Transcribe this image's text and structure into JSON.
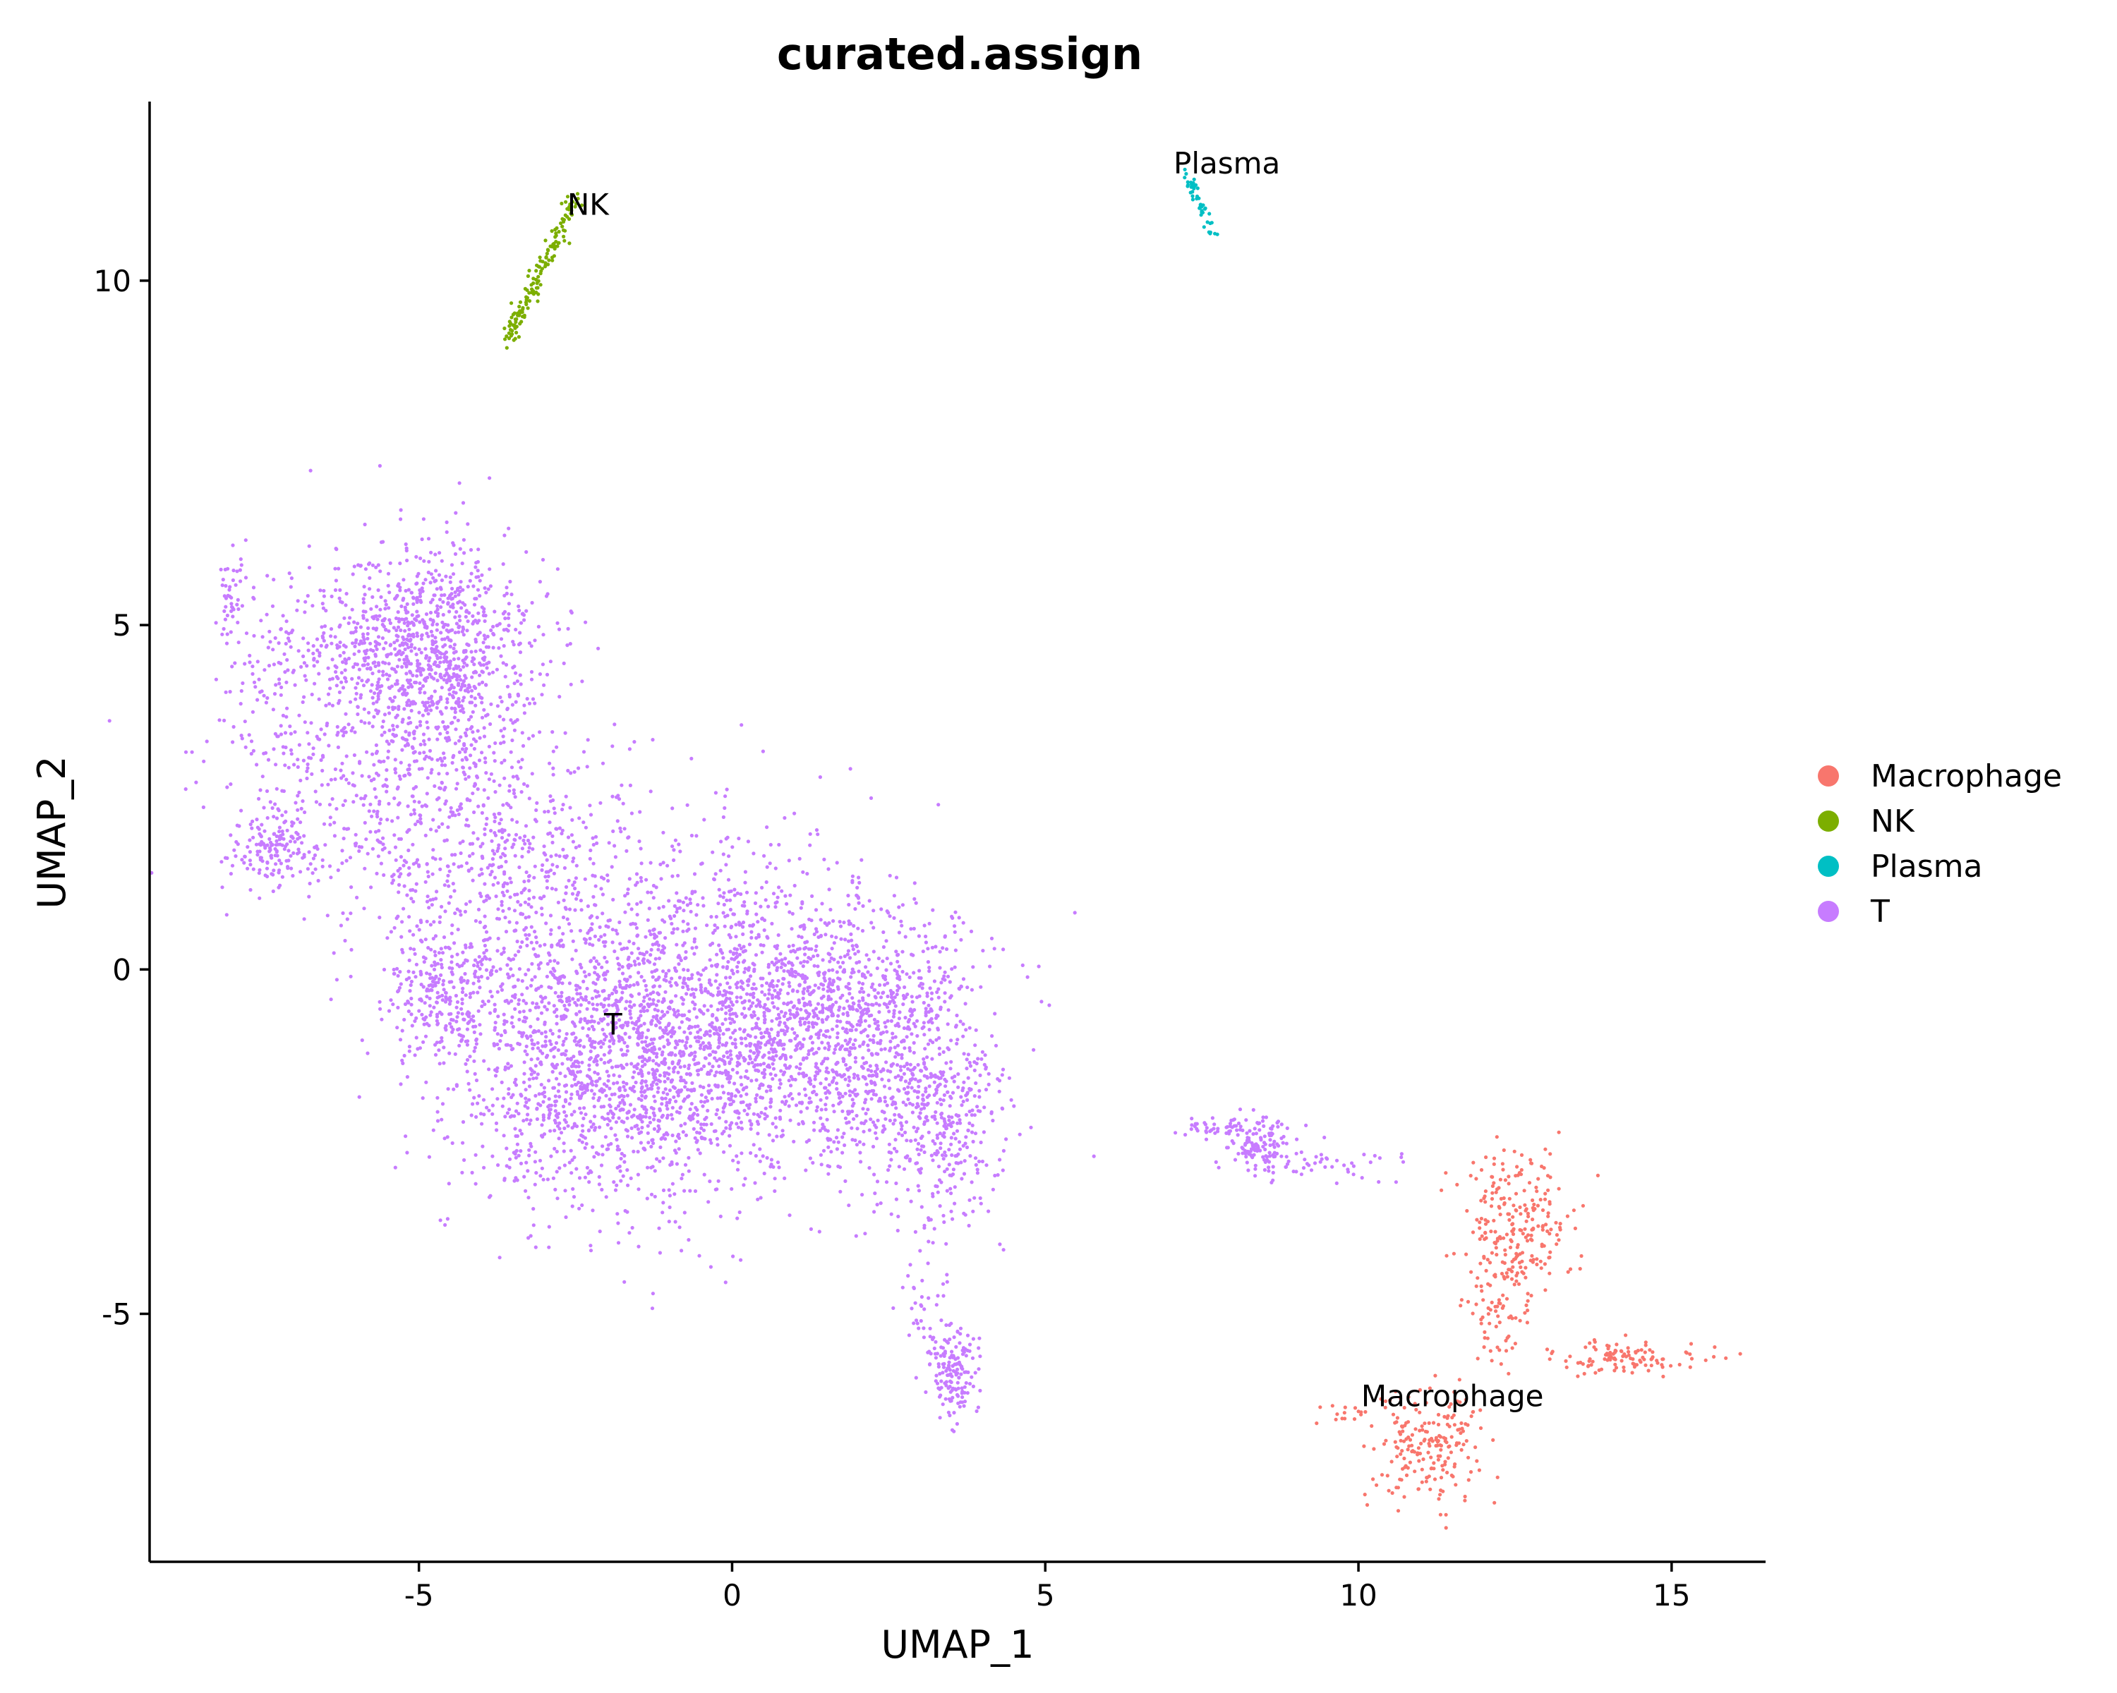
{
  "chart_data": {
    "type": "scatter",
    "title": "curated.assign",
    "xlabel": "UMAP_1",
    "ylabel": "UMAP_2",
    "xlim": [
      -9.3,
      16.5
    ],
    "ylim": [
      -8.6,
      12.6
    ],
    "xticks": [
      -5,
      0,
      5,
      10,
      15
    ],
    "yticks": [
      -5,
      0,
      5,
      10
    ],
    "xtick_labels": [
      "-5",
      "0",
      "5",
      "10",
      "15"
    ],
    "ytick_labels": [
      "-5",
      "0",
      "5",
      "10"
    ],
    "grid": false,
    "legend_position": "right",
    "series": [
      {
        "name": "Macrophage",
        "color": "#F8766D",
        "label_position": [
          11.5,
          -6.2
        ],
        "regions": [
          {
            "cx": 12.5,
            "cy": -3.7,
            "sx": 0.45,
            "sy": 0.55,
            "n": 240
          },
          {
            "cx": 12.15,
            "cy": -5.0,
            "sx": 0.2,
            "sy": 0.45,
            "n": 60
          },
          {
            "cx": 14.2,
            "cy": -5.65,
            "sx": 0.65,
            "sy": 0.13,
            "n": 110
          },
          {
            "cx": 11.1,
            "cy": -6.9,
            "sx": 0.45,
            "sy": 0.42,
            "n": 200
          },
          {
            "cx": 9.9,
            "cy": -6.45,
            "sx": 0.25,
            "sy": 0.07,
            "n": 15
          }
        ]
      },
      {
        "name": "NK",
        "color": "#7CAE00",
        "label_position": [
          -2.3,
          11.1
        ],
        "regions": [
          {
            "type": "line",
            "x1": -3.6,
            "y1": 9.1,
            "x2": -2.5,
            "y2": 11.2,
            "spread": 0.07,
            "n": 150
          }
        ]
      },
      {
        "name": "Plasma",
        "color": "#00BFC4",
        "label_position": [
          7.9,
          11.7
        ],
        "regions": [
          {
            "type": "line",
            "x1": 7.25,
            "y1": 11.55,
            "x2": 7.7,
            "y2": 10.65,
            "spread": 0.04,
            "n": 45
          }
        ]
      },
      {
        "name": "T",
        "color": "#C77CFF",
        "label_position": [
          -1.9,
          -0.8
        ],
        "regions": [
          {
            "cx": -4.9,
            "cy": 4.7,
            "sx": 0.85,
            "sy": 0.75,
            "n": 900
          },
          {
            "cx": -5.3,
            "cy": 3.2,
            "sx": 1.3,
            "sy": 1.1,
            "n": 600
          },
          {
            "cx": -7.3,
            "cy": 1.8,
            "sx": 0.35,
            "sy": 0.28,
            "n": 150
          },
          {
            "cx": -7.2,
            "cy": 3.8,
            "sx": 0.45,
            "sy": 1.1,
            "n": 120
          },
          {
            "cx": -8.0,
            "cy": 5.3,
            "sx": 0.12,
            "sy": 0.35,
            "n": 45
          },
          {
            "cx": -3.5,
            "cy": 1.2,
            "sx": 1.3,
            "sy": 1.1,
            "n": 650
          },
          {
            "cx": -4.6,
            "cy": -0.4,
            "sx": 0.45,
            "sy": 0.45,
            "n": 200
          },
          {
            "cx": -2.0,
            "cy": -1.4,
            "sx": 1.25,
            "sy": 1.05,
            "n": 1500
          },
          {
            "cx": 0.3,
            "cy": -0.6,
            "sx": 1.3,
            "sy": 1.1,
            "n": 1300
          },
          {
            "cx": 2.2,
            "cy": -0.9,
            "sx": 1.0,
            "sy": 0.9,
            "n": 800
          },
          {
            "cx": 3.4,
            "cy": -2.4,
            "sx": 0.45,
            "sy": 0.8,
            "n": 300
          },
          {
            "cx": 3.55,
            "cy": -5.85,
            "sx": 0.18,
            "sy": 0.32,
            "n": 150
          },
          {
            "cx": 3.1,
            "cy": -5.0,
            "sx": 0.2,
            "sy": 0.35,
            "n": 35
          },
          {
            "cx": 8.4,
            "cy": -2.55,
            "sx": 0.28,
            "sy": 0.22,
            "n": 130
          },
          {
            "cx": 7.7,
            "cy": -2.3,
            "sx": 0.35,
            "sy": 0.07,
            "n": 40
          },
          {
            "cx": 9.6,
            "cy": -2.85,
            "sx": 0.5,
            "sy": 0.12,
            "n": 40
          }
        ]
      }
    ]
  }
}
